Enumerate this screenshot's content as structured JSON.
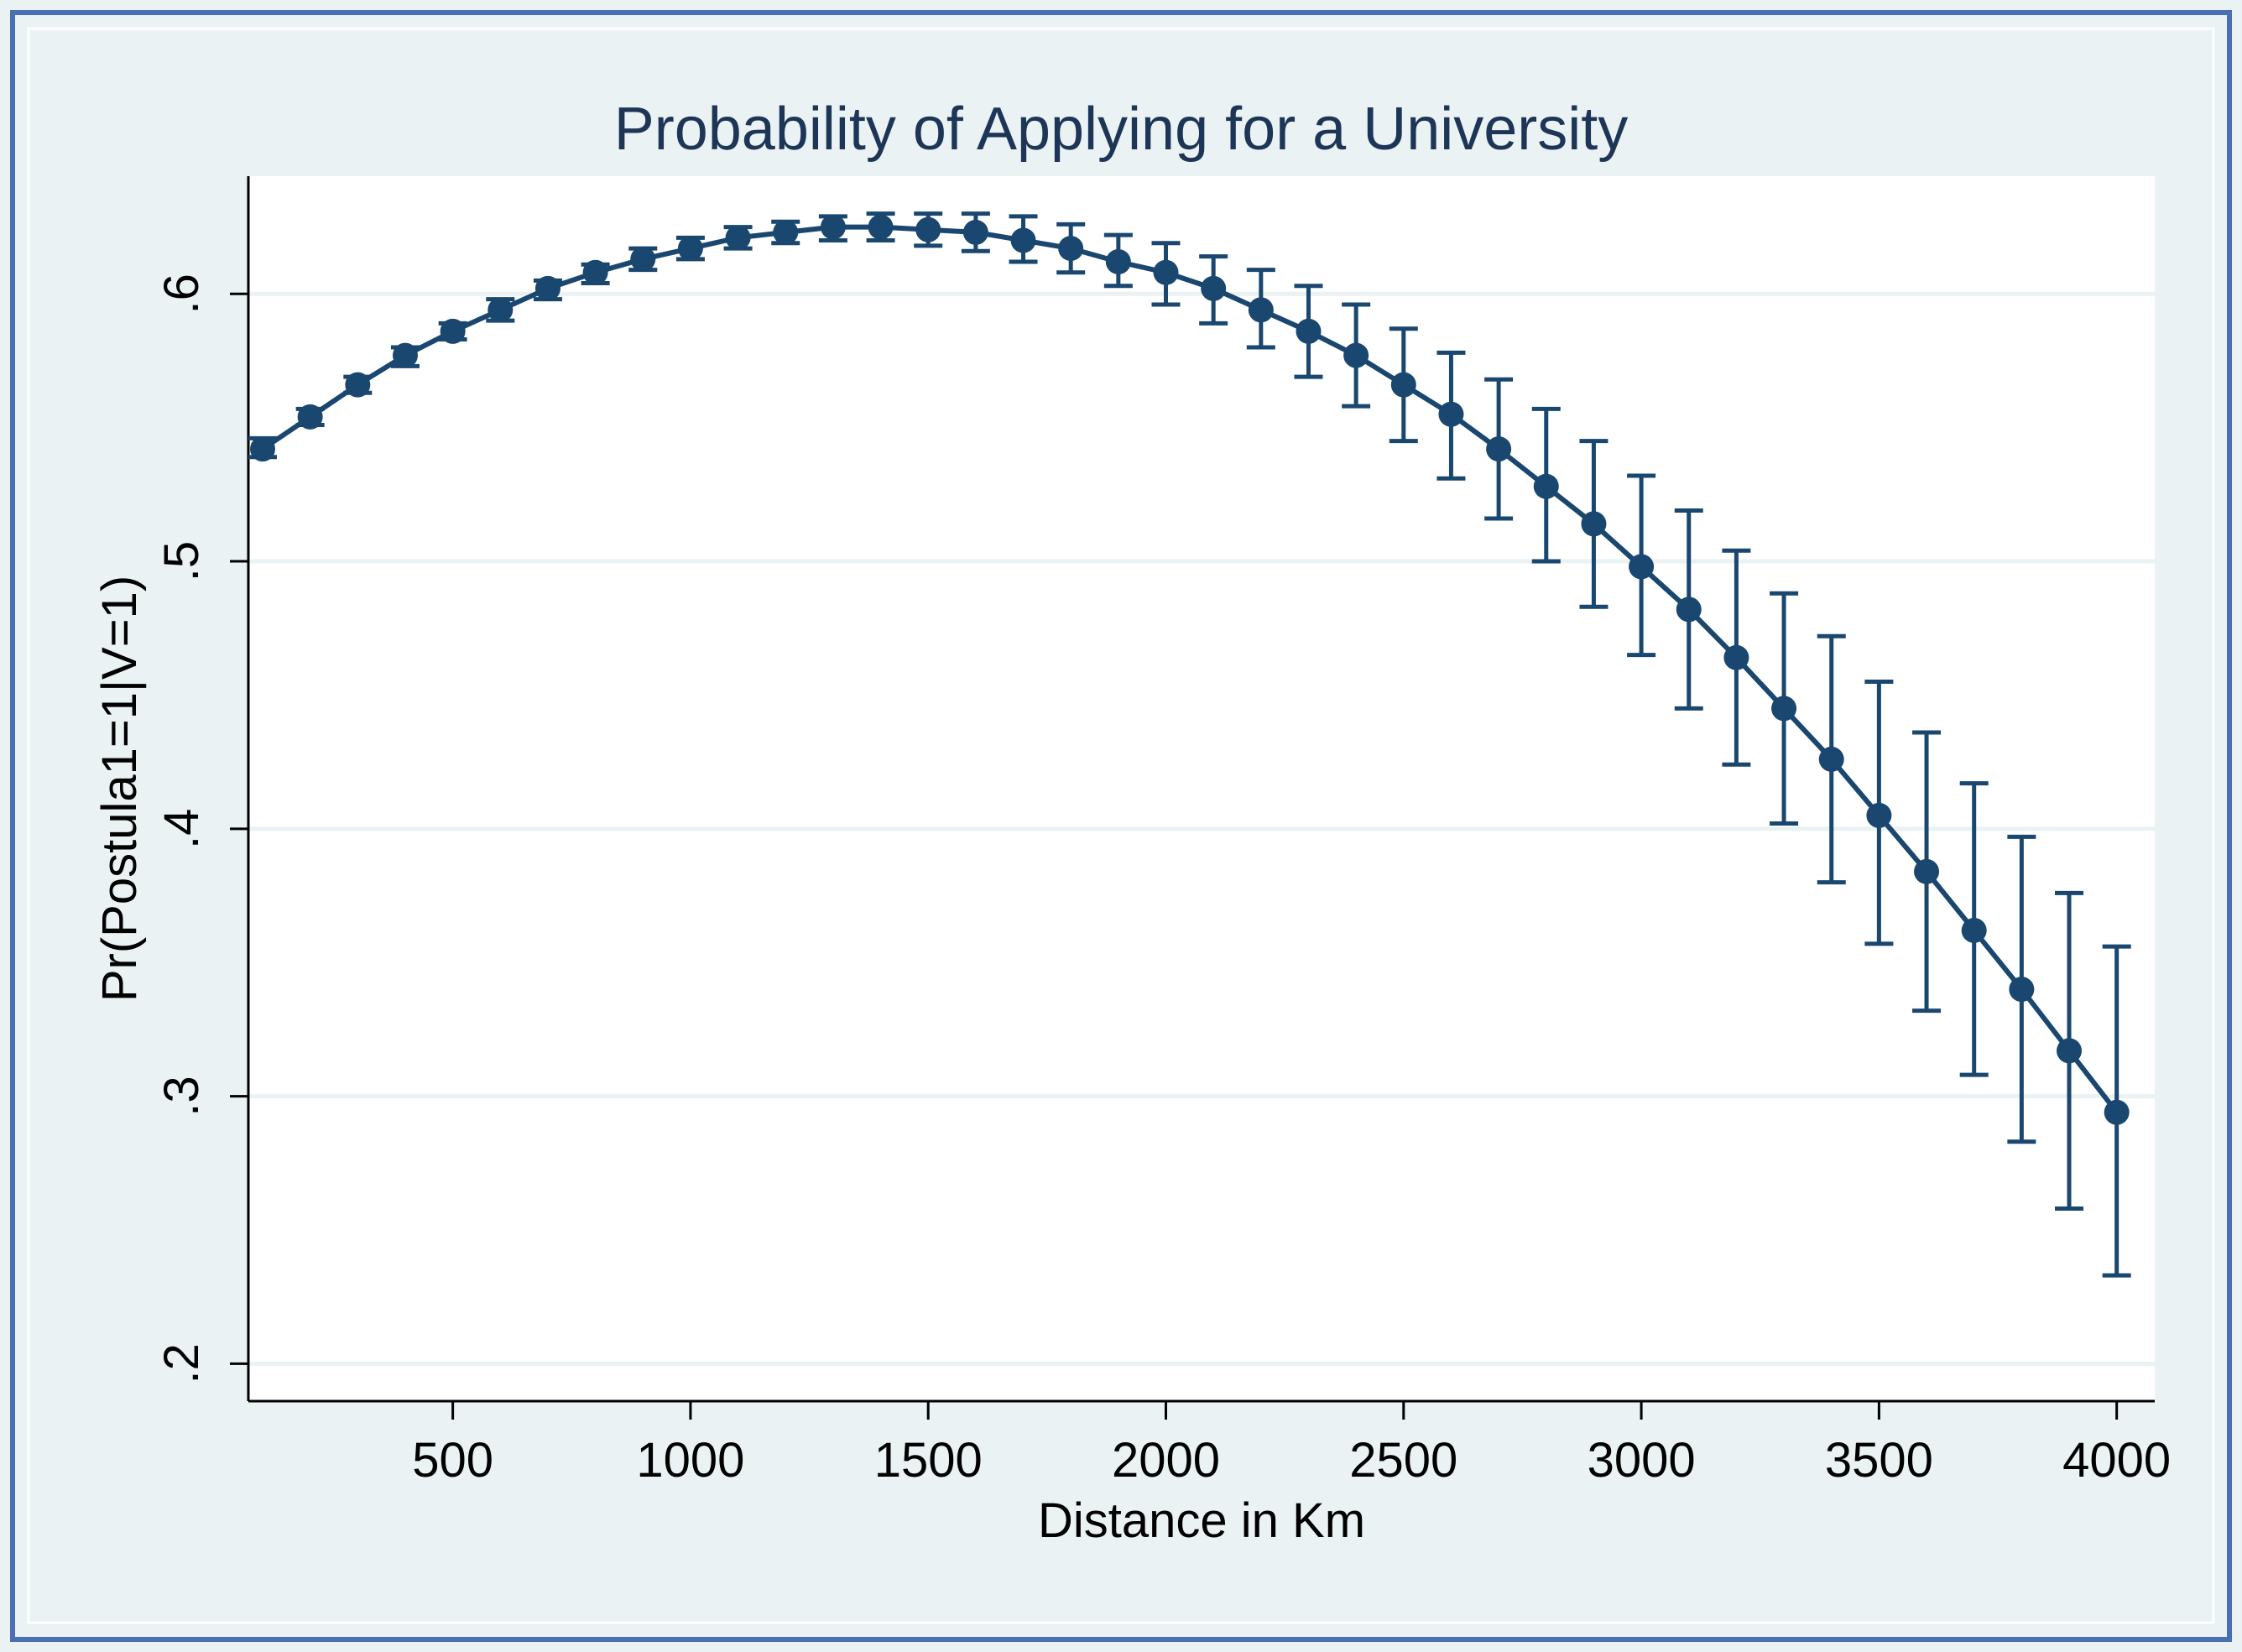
{
  "chart_data": {
    "type": "line",
    "title": "Probability of Applying for a University",
    "xlabel": "Distance in Km",
    "ylabel": "Pr(Postula1=1|V=1)",
    "xlim": [
      70,
      4080
    ],
    "ylim": [
      0.186,
      0.644
    ],
    "x_ticks": [
      500,
      1000,
      1500,
      2000,
      2500,
      3000,
      3500,
      4000
    ],
    "x_tick_labels": [
      "500",
      "1000",
      "1500",
      "2000",
      "2500",
      "3000",
      "3500",
      "4000"
    ],
    "y_ticks": [
      0.2,
      0.3,
      0.4,
      0.5,
      0.6
    ],
    "y_tick_labels": [
      ".2",
      ".3",
      ".4",
      ".5",
      ".6"
    ],
    "grid": "horizontal",
    "colors": {
      "outer_background": "#eaf2f3",
      "plot_background": "#ffffff",
      "frame": "#4a6fb5",
      "series": "#1a476f",
      "grid": "#eaf2f3"
    },
    "series": [
      {
        "name": "Pr(Postula1=1|V=1)",
        "x": [
          100,
          200,
          300,
          400,
          500,
          600,
          700,
          800,
          900,
          1000,
          1100,
          1200,
          1300,
          1400,
          1500,
          1600,
          1700,
          1800,
          1900,
          2000,
          2100,
          2200,
          2300,
          2400,
          2500,
          2600,
          2700,
          2800,
          2900,
          3000,
          3100,
          3200,
          3300,
          3400,
          3500,
          3600,
          3700,
          3800,
          3900,
          4000
        ],
        "y": [
          0.542,
          0.554,
          0.566,
          0.577,
          0.586,
          0.594,
          0.602,
          0.608,
          0.613,
          0.617,
          0.621,
          0.623,
          0.625,
          0.625,
          0.624,
          0.623,
          0.62,
          0.617,
          0.612,
          0.608,
          0.602,
          0.594,
          0.586,
          0.577,
          0.566,
          0.555,
          0.542,
          0.528,
          0.514,
          0.498,
          0.482,
          0.464,
          0.445,
          0.426,
          0.405,
          0.384,
          0.362,
          0.34,
          0.317,
          0.294
        ],
        "ci_low": [
          0.539,
          0.551,
          0.563,
          0.573,
          0.583,
          0.59,
          0.598,
          0.604,
          0.609,
          0.613,
          0.617,
          0.619,
          0.62,
          0.62,
          0.618,
          0.616,
          0.612,
          0.608,
          0.603,
          0.596,
          0.589,
          0.58,
          0.569,
          0.558,
          0.545,
          0.531,
          0.516,
          0.5,
          0.483,
          0.465,
          0.445,
          0.424,
          0.402,
          0.38,
          0.357,
          0.332,
          0.308,
          0.283,
          0.258,
          0.233
        ],
        "ci_high": [
          0.546,
          0.557,
          0.569,
          0.58,
          0.589,
          0.598,
          0.605,
          0.611,
          0.617,
          0.621,
          0.625,
          0.627,
          0.629,
          0.63,
          0.63,
          0.63,
          0.629,
          0.626,
          0.622,
          0.619,
          0.614,
          0.609,
          0.603,
          0.596,
          0.587,
          0.578,
          0.568,
          0.557,
          0.545,
          0.532,
          0.519,
          0.504,
          0.488,
          0.472,
          0.455,
          0.436,
          0.417,
          0.397,
          0.376,
          0.356
        ]
      }
    ]
  }
}
